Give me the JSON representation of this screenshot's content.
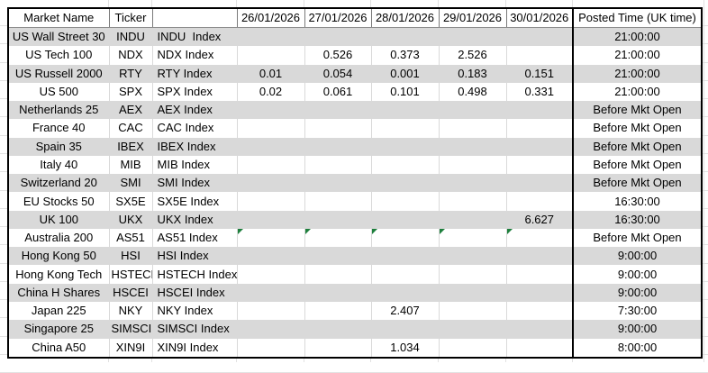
{
  "table": {
    "columns": [
      "Market Name",
      "Ticker",
      "",
      "26/01/2026",
      "27/01/2026",
      "28/01/2026",
      "29/01/2026",
      "30/01/2026",
      "Posted Time (UK time)"
    ],
    "rows": [
      {
        "market": "US Wall Street 30",
        "ticker": "INDU",
        "index_name": "INDU  Index",
        "values": [
          "",
          "",
          "",
          "",
          ""
        ],
        "flags": [
          false,
          false,
          false,
          false,
          false
        ],
        "posted": "21:00:00"
      },
      {
        "market": "US Tech 100",
        "ticker": "NDX",
        "index_name": "NDX Index",
        "values": [
          "",
          "0.526",
          "0.373",
          "2.526",
          ""
        ],
        "flags": [
          false,
          false,
          false,
          false,
          false
        ],
        "posted": "21:00:00"
      },
      {
        "market": "US Russell 2000",
        "ticker": "RTY",
        "index_name": "RTY Index",
        "values": [
          "0.01",
          "0.054",
          "0.001",
          "0.183",
          "0.151"
        ],
        "flags": [
          false,
          false,
          false,
          false,
          false
        ],
        "posted": "21:00:00"
      },
      {
        "market": "US 500",
        "ticker": "SPX",
        "index_name": "SPX Index",
        "values": [
          "0.02",
          "0.061",
          "0.101",
          "0.498",
          "0.331"
        ],
        "flags": [
          false,
          false,
          false,
          false,
          false
        ],
        "posted": "21:00:00"
      },
      {
        "market": "Netherlands 25",
        "ticker": "AEX",
        "index_name": "AEX Index",
        "values": [
          "",
          "",
          "",
          "",
          ""
        ],
        "flags": [
          false,
          false,
          false,
          false,
          false
        ],
        "posted": "Before Mkt Open"
      },
      {
        "market": "France 40",
        "ticker": "CAC",
        "index_name": "CAC Index",
        "values": [
          "",
          "",
          "",
          "",
          ""
        ],
        "flags": [
          false,
          false,
          false,
          false,
          false
        ],
        "posted": "Before Mkt Open"
      },
      {
        "market": "Spain 35",
        "ticker": "IBEX",
        "index_name": "IBEX Index",
        "values": [
          "",
          "",
          "",
          "",
          ""
        ],
        "flags": [
          false,
          false,
          false,
          false,
          false
        ],
        "posted": "Before Mkt Open"
      },
      {
        "market": "Italy 40",
        "ticker": "MIB",
        "index_name": "MIB Index",
        "values": [
          "",
          "",
          "",
          "",
          ""
        ],
        "flags": [
          false,
          false,
          false,
          false,
          false
        ],
        "posted": "Before Mkt Open"
      },
      {
        "market": "Switzerland 20",
        "ticker": "SMI",
        "index_name": "SMI Index",
        "values": [
          "",
          "",
          "",
          "",
          ""
        ],
        "flags": [
          false,
          false,
          false,
          false,
          false
        ],
        "posted": "Before Mkt Open"
      },
      {
        "market": "EU Stocks 50",
        "ticker": "SX5E",
        "index_name": "SX5E Index",
        "values": [
          "",
          "",
          "",
          "",
          ""
        ],
        "flags": [
          false,
          false,
          false,
          false,
          false
        ],
        "posted": "16:30:00"
      },
      {
        "market": "UK 100",
        "ticker": "UKX",
        "index_name": "UKX Index",
        "values": [
          "",
          "",
          "",
          "",
          "6.627"
        ],
        "flags": [
          false,
          false,
          false,
          false,
          false
        ],
        "posted": "16:30:00"
      },
      {
        "market": "Australia 200",
        "ticker": "AS51",
        "index_name": "AS51 Index",
        "values": [
          "",
          "",
          "",
          "",
          ""
        ],
        "flags": [
          true,
          true,
          true,
          true,
          true
        ],
        "posted": "Before Mkt Open"
      },
      {
        "market": "Hong Kong 50",
        "ticker": "HSI",
        "index_name": "HSI Index",
        "values": [
          "",
          "",
          "",
          "",
          ""
        ],
        "flags": [
          false,
          false,
          false,
          false,
          false
        ],
        "posted": "9:00:00"
      },
      {
        "market": "Hong Kong Tech",
        "ticker": "HSTECH",
        "index_name": "HSTECH Index",
        "values": [
          "",
          "",
          "",
          "",
          ""
        ],
        "flags": [
          false,
          false,
          false,
          false,
          false
        ],
        "posted": "9:00:00"
      },
      {
        "market": "China H Shares",
        "ticker": "HSCEI",
        "index_name": "HSCEI Index",
        "values": [
          "",
          "",
          "",
          "",
          ""
        ],
        "flags": [
          false,
          false,
          false,
          false,
          false
        ],
        "posted": "9:00:00"
      },
      {
        "market": "Japan 225",
        "ticker": "NKY",
        "index_name": "NKY Index",
        "values": [
          "",
          "",
          "2.407",
          "",
          ""
        ],
        "flags": [
          false,
          false,
          false,
          false,
          false
        ],
        "posted": "7:30:00"
      },
      {
        "market": "Singapore 25",
        "ticker": "SIMSCI",
        "index_name": "SIMSCI Index",
        "values": [
          "",
          "",
          "",
          "",
          ""
        ],
        "flags": [
          false,
          false,
          false,
          false,
          false
        ],
        "posted": "9:00:00"
      },
      {
        "market": "China A50",
        "ticker": "XIN9I",
        "index_name": "XIN9I Index",
        "values": [
          "",
          "",
          "1.034",
          "",
          ""
        ],
        "flags": [
          false,
          false,
          false,
          false,
          false
        ],
        "posted": "8:00:00"
      }
    ]
  },
  "colors": {
    "row_band_gray": "#d9d9d9",
    "flag_green": "#1d7f3c",
    "table_border": "#000000"
  },
  "icons": {
    "flag_triangle": "cell-flag-triangle-icon"
  }
}
